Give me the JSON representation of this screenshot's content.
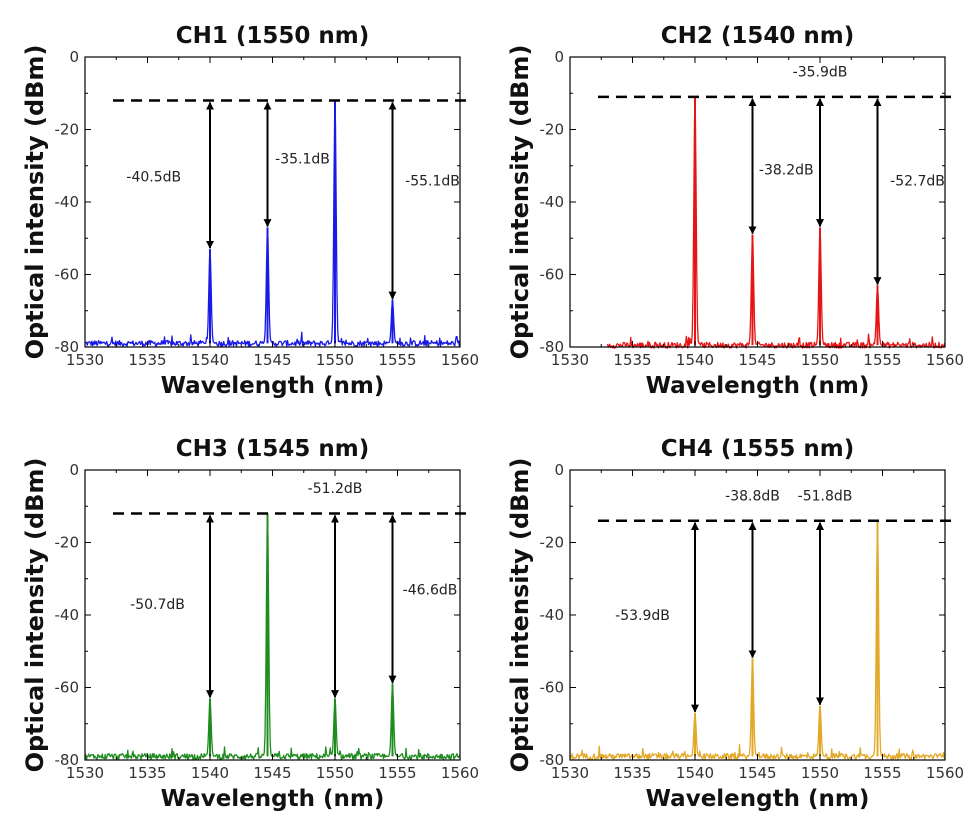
{
  "chart_data": [
    {
      "type": "line",
      "title": "CH1 (1550 nm)",
      "xlabel": "Wavelength (nm)",
      "ylabel": "Optical intensity (dBm)",
      "xlim": [
        1530,
        1560
      ],
      "ylim": [
        -80,
        0
      ],
      "xticks": [
        1530,
        1535,
        1540,
        1545,
        1550,
        1555,
        1560
      ],
      "yticks": [
        0,
        -20,
        -40,
        -60,
        -80
      ],
      "color": "#1a1ae6",
      "noise_floor": -79,
      "x_start": 1530,
      "x_end": 1560,
      "reference_level": -12,
      "peaks": [
        {
          "x": 1540,
          "y": -53
        },
        {
          "x": 1544.6,
          "y": -47
        },
        {
          "x": 1550,
          "y": -12
        },
        {
          "x": 1554.6,
          "y": -67
        }
      ],
      "annotations": [
        {
          "x": 1540,
          "y_top": -12,
          "y_bottom": -53,
          "label": "-40.5dB",
          "label_x": 1535.5,
          "label_y": -33
        },
        {
          "x": 1544.6,
          "y_top": -12,
          "y_bottom": -47,
          "label": "-35.1dB",
          "label_x": 1547.4,
          "label_y": -28
        },
        {
          "x": 1554.6,
          "y_top": -12,
          "y_bottom": -67,
          "label": "-55.1dB",
          "label_x": 1557.8,
          "label_y": -34
        }
      ]
    },
    {
      "type": "line",
      "title": "CH2 (1540 nm)",
      "xlabel": "Wavelength (nm)",
      "ylabel": "Optical intensity (dBm)",
      "xlim": [
        1530,
        1560
      ],
      "ylim": [
        -80,
        0
      ],
      "xticks": [
        1530,
        1535,
        1540,
        1545,
        1550,
        1555,
        1560
      ],
      "yticks": [
        0,
        -20,
        -40,
        -60,
        -80
      ],
      "color": "#e61414",
      "noise_floor": -79.5,
      "x_start": 1533,
      "x_end": 1560,
      "reference_level": -11,
      "peaks": [
        {
          "x": 1540,
          "y": -11
        },
        {
          "x": 1544.6,
          "y": -49
        },
        {
          "x": 1550,
          "y": -47
        },
        {
          "x": 1554.6,
          "y": -63
        }
      ],
      "annotations": [
        {
          "x": 1544.6,
          "y_top": -11,
          "y_bottom": -49,
          "label": "-38.2dB",
          "label_x": 1547.3,
          "label_y": -31
        },
        {
          "x": 1550,
          "y_top": -11,
          "y_bottom": -47,
          "label": "-35.9dB",
          "label_x": 1550,
          "label_y": -4
        },
        {
          "x": 1554.6,
          "y_top": -11,
          "y_bottom": -63,
          "label": "-52.7dB",
          "label_x": 1557.8,
          "label_y": -34
        }
      ]
    },
    {
      "type": "line",
      "title": "CH3 (1545 nm)",
      "xlabel": "Wavelength (nm)",
      "ylabel": "Optical intensity (dBm)",
      "xlim": [
        1530,
        1560
      ],
      "ylim": [
        -80,
        0
      ],
      "xticks": [
        1530,
        1535,
        1540,
        1545,
        1550,
        1555,
        1560
      ],
      "yticks": [
        0,
        -20,
        -40,
        -60,
        -80
      ],
      "color": "#1e8c1e",
      "noise_floor": -79,
      "x_start": 1530,
      "x_end": 1560,
      "reference_level": -12,
      "peaks": [
        {
          "x": 1540,
          "y": -63
        },
        {
          "x": 1544.6,
          "y": -12
        },
        {
          "x": 1550,
          "y": -63
        },
        {
          "x": 1554.6,
          "y": -59
        }
      ],
      "annotations": [
        {
          "x": 1540,
          "y_top": -12,
          "y_bottom": -63,
          "label": "-50.7dB",
          "label_x": 1535.8,
          "label_y": -37
        },
        {
          "x": 1550,
          "y_top": -12,
          "y_bottom": -63,
          "label": "-51.2dB",
          "label_x": 1550,
          "label_y": -5
        },
        {
          "x": 1554.6,
          "y_top": -12,
          "y_bottom": -59,
          "label": "-46.6dB",
          "label_x": 1557.6,
          "label_y": -33
        }
      ]
    },
    {
      "type": "line",
      "title": "CH4 (1555 nm)",
      "xlabel": "Wavelength (nm)",
      "ylabel": "Optical intensity (dBm)",
      "xlim": [
        1530,
        1560
      ],
      "ylim": [
        -80,
        0
      ],
      "xticks": [
        1530,
        1535,
        1540,
        1545,
        1550,
        1555,
        1560
      ],
      "yticks": [
        0,
        -20,
        -40,
        -60,
        -80
      ],
      "color": "#e2a826",
      "noise_floor": -79,
      "x_start": 1530,
      "x_end": 1560,
      "reference_level": -14,
      "peaks": [
        {
          "x": 1540,
          "y": -67
        },
        {
          "x": 1544.6,
          "y": -52
        },
        {
          "x": 1550,
          "y": -65
        },
        {
          "x": 1554.6,
          "y": -14
        }
      ],
      "annotations": [
        {
          "x": 1540,
          "y_top": -14,
          "y_bottom": -67,
          "label": "-53.9dB",
          "label_x": 1535.8,
          "label_y": -40
        },
        {
          "x": 1544.6,
          "y_top": -14,
          "y_bottom": -52,
          "label": "-38.8dB",
          "label_x": 1544.6,
          "label_y": -7
        },
        {
          "x": 1550,
          "y_top": -14,
          "y_bottom": -65,
          "label": "-51.8dB",
          "label_x": 1550.4,
          "label_y": -7
        }
      ]
    }
  ]
}
